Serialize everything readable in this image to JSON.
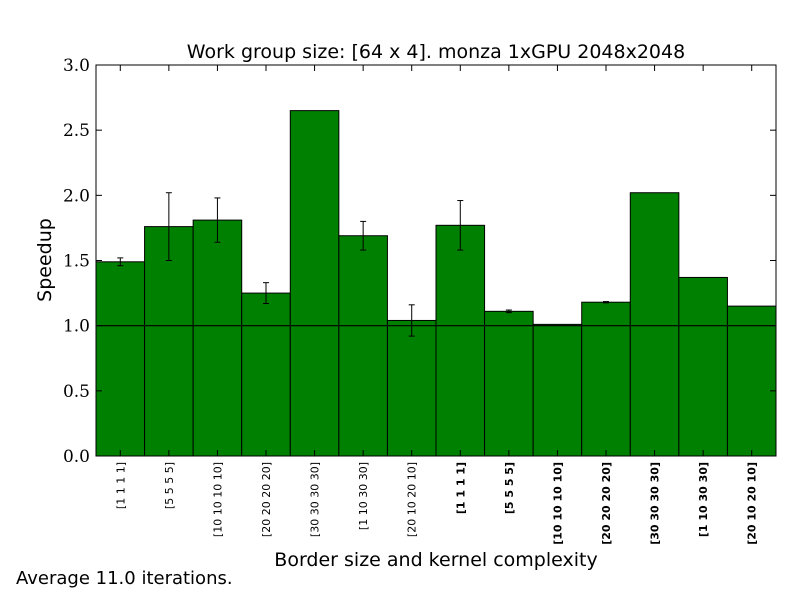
{
  "chart_data": {
    "type": "bar",
    "title": "Work group size: [64 x 4]. monza 1xGPU 2048x2048",
    "xlabel": "Border size and kernel complexity",
    "ylabel": "Speedup",
    "ylim": [
      0,
      3.0
    ],
    "yticks": [
      "0.0",
      "0.5",
      "1.0",
      "1.5",
      "2.0",
      "2.5",
      "3.0"
    ],
    "reference_line": 1.0,
    "bar_color": "#008000",
    "categories": [
      "[1 1 1 1]",
      "[5 5 5 5]",
      "[10 10 10 10]",
      "[20 20 20 20]",
      "[30 30 30 30]",
      "[1 10 30 30]",
      "[20 10 20 10]",
      "[1 1 1 1]",
      "[5 5 5 5]",
      "[10 10 10 10]",
      "[20 20 20 20]",
      "[30 30 30 30]",
      "[1 10 30 30]",
      "[20 10 20 10]"
    ],
    "bold_categories": [
      false,
      false,
      false,
      false,
      false,
      false,
      false,
      true,
      true,
      true,
      true,
      true,
      true,
      true
    ],
    "values": [
      1.49,
      1.76,
      1.81,
      1.25,
      2.65,
      1.69,
      1.04,
      1.77,
      1.11,
      1.01,
      1.18,
      2.02,
      1.37,
      1.15
    ],
    "errors": [
      0.03,
      0.26,
      0.17,
      0.08,
      0.0,
      0.11,
      0.12,
      0.19,
      0.01,
      0.0,
      0.005,
      0.0,
      0.0,
      0.0
    ],
    "grid": false,
    "legend": "none"
  },
  "footnote": "Average 11.0 iterations."
}
